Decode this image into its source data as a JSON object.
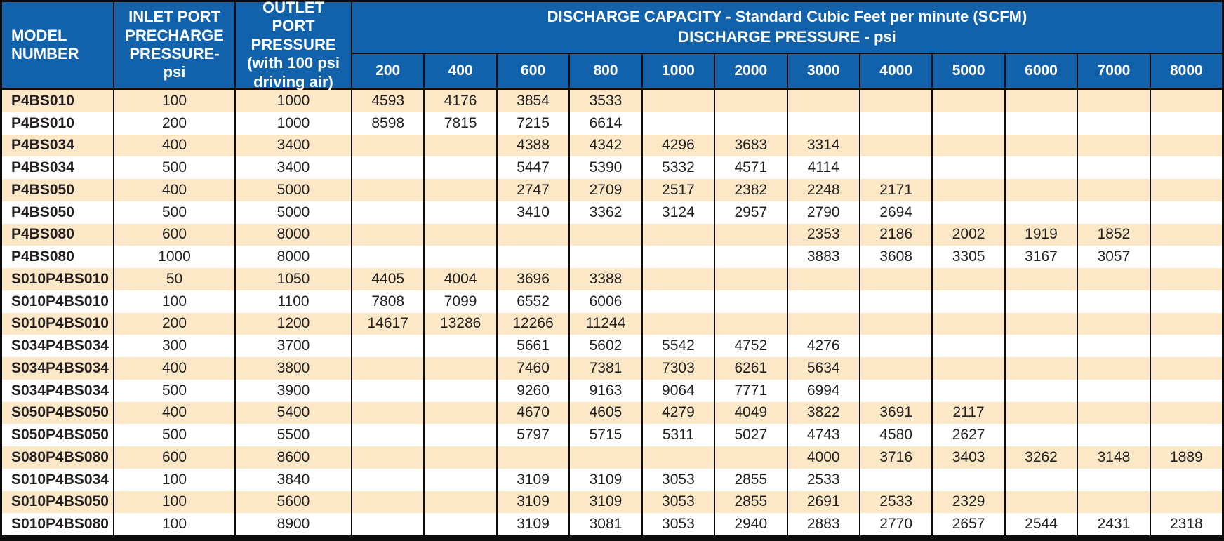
{
  "colors": {
    "header_bg": "#1162ab",
    "header_text": "#ffffff",
    "row_stripe": "#fce8c7",
    "row_plain": "#ffffff",
    "border": "#0d0d0d",
    "body_text": "#231f20"
  },
  "table": {
    "header": {
      "model_label": "MODEL NUMBER",
      "inlet_label": "INLET PORT PRECHARGE PRESSURE-psi",
      "outlet_label": "OUTLET PORT PRESSURE (with 100 psi driving air)",
      "discharge_line1": "DISCHARGE CAPACITY - Standard Cubic Feet per minute (SCFM)",
      "discharge_line2": "DISCHARGE PRESSURE - psi",
      "pressure_columns": [
        "200",
        "400",
        "600",
        "800",
        "1000",
        "2000",
        "3000",
        "4000",
        "5000",
        "6000",
        "7000",
        "8000"
      ]
    },
    "rows": [
      {
        "model": "P4BS010",
        "inlet": "100",
        "outlet": "1000",
        "values": [
          "4593",
          "4176",
          "3854",
          "3533",
          "",
          "",
          "",
          "",
          "",
          "",
          "",
          ""
        ]
      },
      {
        "model": "P4BS010",
        "inlet": "200",
        "outlet": "1000",
        "values": [
          "8598",
          "7815",
          "7215",
          "6614",
          "",
          "",
          "",
          "",
          "",
          "",
          "",
          ""
        ]
      },
      {
        "model": "P4BS034",
        "inlet": "400",
        "outlet": "3400",
        "values": [
          "",
          "",
          "4388",
          "4342",
          "4296",
          "3683",
          "3314",
          "",
          "",
          "",
          "",
          ""
        ]
      },
      {
        "model": "P4BS034",
        "inlet": "500",
        "outlet": "3400",
        "values": [
          "",
          "",
          "5447",
          "5390",
          "5332",
          "4571",
          "4114",
          "",
          "",
          "",
          "",
          ""
        ]
      },
      {
        "model": "P4BS050",
        "inlet": "400",
        "outlet": "5000",
        "values": [
          "",
          "",
          "2747",
          "2709",
          "2517",
          "2382",
          "2248",
          "2171",
          "",
          "",
          "",
          ""
        ]
      },
      {
        "model": "P4BS050",
        "inlet": "500",
        "outlet": "5000",
        "values": [
          "",
          "",
          "3410",
          "3362",
          "3124",
          "2957",
          "2790",
          "2694",
          "",
          "",
          "",
          ""
        ]
      },
      {
        "model": "P4BS080",
        "inlet": "600",
        "outlet": "8000",
        "values": [
          "",
          "",
          "",
          "",
          "",
          "",
          "2353",
          "2186",
          "2002",
          "1919",
          "1852",
          ""
        ]
      },
      {
        "model": "P4BS080",
        "inlet": "1000",
        "outlet": "8000",
        "values": [
          "",
          "",
          "",
          "",
          "",
          "",
          "3883",
          "3608",
          "3305",
          "3167",
          "3057",
          ""
        ]
      },
      {
        "model": "S010P4BS010",
        "inlet": "50",
        "outlet": "1050",
        "values": [
          "4405",
          "4004",
          "3696",
          "3388",
          "",
          "",
          "",
          "",
          "",
          "",
          "",
          ""
        ]
      },
      {
        "model": "S010P4BS010",
        "inlet": "100",
        "outlet": "1100",
        "values": [
          "7808",
          "7099",
          "6552",
          "6006",
          "",
          "",
          "",
          "",
          "",
          "",
          "",
          ""
        ]
      },
      {
        "model": "S010P4BS010",
        "inlet": "200",
        "outlet": "1200",
        "values": [
          "14617",
          "13286",
          "12266",
          "11244",
          "",
          "",
          "",
          "",
          "",
          "",
          "",
          ""
        ]
      },
      {
        "model": "S034P4BS034",
        "inlet": "300",
        "outlet": "3700",
        "values": [
          "",
          "",
          "5661",
          "5602",
          "5542",
          "4752",
          "4276",
          "",
          "",
          "",
          "",
          ""
        ]
      },
      {
        "model": "S034P4BS034",
        "inlet": "400",
        "outlet": "3800",
        "values": [
          "",
          "",
          "7460",
          "7381",
          "7303",
          "6261",
          "5634",
          "",
          "",
          "",
          "",
          ""
        ]
      },
      {
        "model": "S034P4BS034",
        "inlet": "500",
        "outlet": "3900",
        "values": [
          "",
          "",
          "9260",
          "9163",
          "9064",
          "7771",
          "6994",
          "",
          "",
          "",
          "",
          ""
        ]
      },
      {
        "model": "S050P4BS050",
        "inlet": "400",
        "outlet": "5400",
        "values": [
          "",
          "",
          "4670",
          "4605",
          "4279",
          "4049",
          "3822",
          "3691",
          "2117",
          "",
          "",
          ""
        ]
      },
      {
        "model": "S050P4BS050",
        "inlet": "500",
        "outlet": "5500",
        "values": [
          "",
          "",
          "5797",
          "5715",
          "5311",
          "5027",
          "4743",
          "4580",
          "2627",
          "",
          "",
          ""
        ]
      },
      {
        "model": "S080P4BS080",
        "inlet": "600",
        "outlet": "8600",
        "values": [
          "",
          "",
          "",
          "",
          "",
          "",
          "4000",
          "3716",
          "3403",
          "3262",
          "3148",
          "1889"
        ]
      },
      {
        "model": "S010P4BS034",
        "inlet": "100",
        "outlet": "3840",
        "values": [
          "",
          "",
          "3109",
          "3109",
          "3053",
          "2855",
          "2533",
          "",
          "",
          "",
          "",
          ""
        ]
      },
      {
        "model": "S010P4BS050",
        "inlet": "100",
        "outlet": "5600",
        "values": [
          "",
          "",
          "3109",
          "3109",
          "3053",
          "2855",
          "2691",
          "2533",
          "2329",
          "",
          "",
          ""
        ]
      },
      {
        "model": "S010P4BS080",
        "inlet": "100",
        "outlet": "8900",
        "values": [
          "",
          "",
          "3109",
          "3081",
          "3053",
          "2940",
          "2883",
          "2770",
          "2657",
          "2544",
          "2431",
          "2318"
        ]
      }
    ]
  }
}
